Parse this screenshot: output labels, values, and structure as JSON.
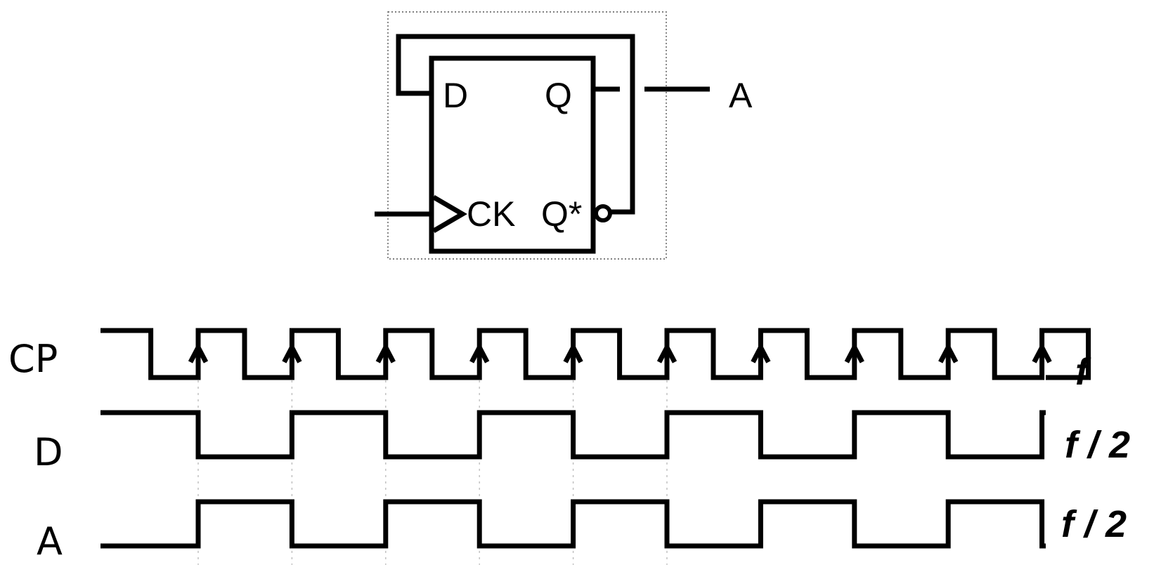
{
  "flip_flop": {
    "input_d": "D",
    "output_q": "Q",
    "clock_input": "CK",
    "output_q_inverted": "Q*",
    "output_net": "A"
  },
  "timing": {
    "signals": [
      {
        "id": "cp",
        "name": "CP",
        "frequency": "f"
      },
      {
        "id": "d",
        "name": "D",
        "frequency": "f / 2"
      },
      {
        "id": "a",
        "name": "A",
        "frequency": "f / 2"
      }
    ],
    "cp_pulses": 10,
    "cp_initial_level": "high",
    "clock_edge": "rising",
    "d_initial_level": "high",
    "a_initial_level": "low"
  }
}
